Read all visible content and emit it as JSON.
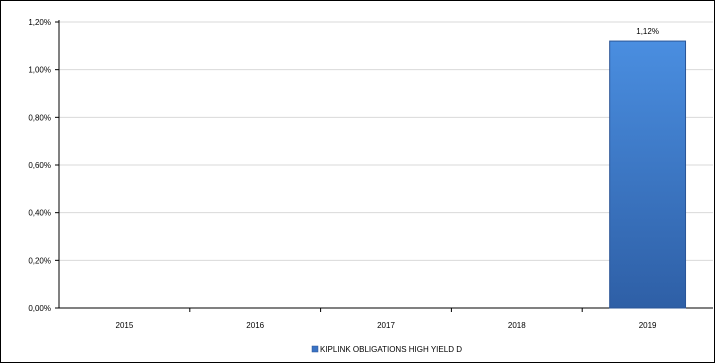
{
  "chart_data": {
    "type": "bar",
    "categories": [
      "2015",
      "2016",
      "2017",
      "2018",
      "2019"
    ],
    "series": [
      {
        "name": "KIPLINK OBLIGATIONS HIGH YIELD D",
        "values": [
          null,
          null,
          null,
          null,
          1.12
        ],
        "color": "#3a73c4"
      }
    ],
    "data_labels": [
      "",
      "",
      "",
      "",
      "1,12%"
    ],
    "y_ticks": [
      "0,00%",
      "0,20%",
      "0,40%",
      "0,60%",
      "0,80%",
      "1,00%",
      "1,20%"
    ],
    "ylim": [
      0,
      1.2
    ],
    "grid": true,
    "legend_position": "bottom",
    "title": "",
    "xlabel": "",
    "ylabel": ""
  }
}
